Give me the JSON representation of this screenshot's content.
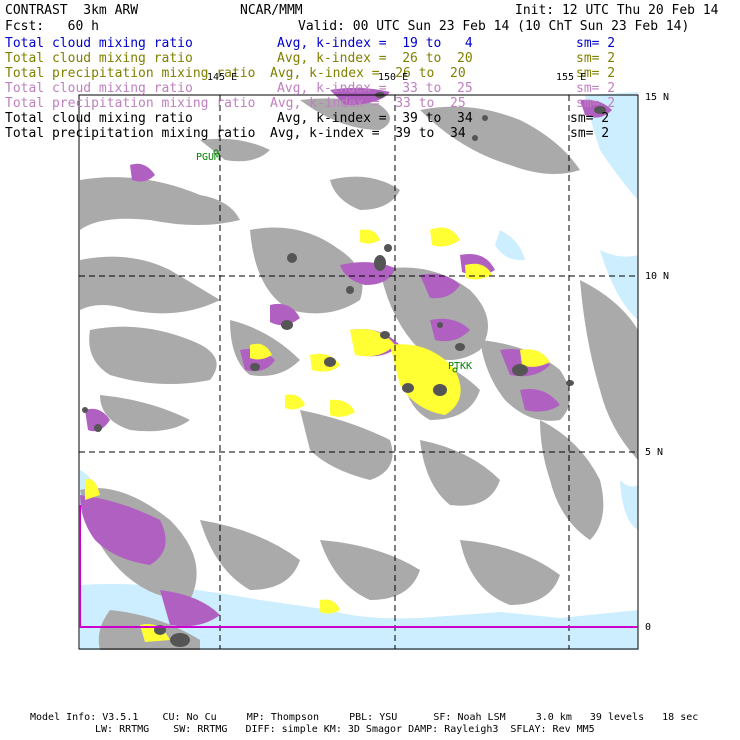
{
  "header": {
    "model": "CONTRAST  3km ARW",
    "org": "NCAR/MMM",
    "init": "Init: 12 UTC Thu 20 Feb 14",
    "fcst": "Fcst:   60 h",
    "valid": "Valid: 00 UTC Sun 23 Feb 14 (10 ChT Sun 23 Feb 14)"
  },
  "fields": [
    {
      "name": "Total cloud mixing ratio",
      "avg": "Avg, k-index =  19 to   4",
      "sm": "sm= 2",
      "color": "#0000cc"
    },
    {
      "name": "Total cloud mixing ratio",
      "avg": "Avg, k-index =  26 to  20",
      "sm": "sm= 2",
      "color": "#808000"
    },
    {
      "name": "Total precipitation mixing ratio",
      "avg": "Avg, k-index =  26 to  20",
      "sm": "sm= 2",
      "color": "#808000"
    },
    {
      "name": "Total cloud mixing ratio",
      "avg": "Avg, k-index =  33 to  25",
      "sm": "sm= 2",
      "color": "#c080c0"
    },
    {
      "name": "Total precipitation mixing ratio",
      "avg": "Avg, k-index =  33 to  25",
      "sm": "sm= 2",
      "color": "#c080c0"
    },
    {
      "name": "Total cloud mixing ratio",
      "avg": "Avg, k-index =  39 to  34",
      "sm": "sm= 2",
      "color": "#000000"
    },
    {
      "name": "Total precipitation mixing ratio",
      "avg": "Avg, k-index =  39 to  34",
      "sm": "sm= 2",
      "color": "#000000"
    }
  ],
  "map": {
    "lon_labels": [
      "145 E",
      "150 E",
      "155 E"
    ],
    "lat_labels": [
      "15 N",
      "10 N",
      "5 N",
      "0"
    ],
    "stations": [
      "PGUM",
      "PTKK"
    ],
    "colors": {
      "gray": "#aaaaaa",
      "dark": "#555555",
      "purple": "#b060c0",
      "yellow": "#ffff33",
      "cyan": "#cceeff",
      "equator": "#cc00cc"
    }
  },
  "footer": {
    "line1": "Model Info: V3.5.1    CU: No Cu     MP: Thompson     PBL: YSU      SF: Noah LSM     3.0 km   39 levels   18 sec",
    "line2": "LW: RRTMG    SW: RRTMG   DIFF: simple KM: 3D Smagor DAMP: Rayleigh3  SFLAY: Rev MM5"
  }
}
